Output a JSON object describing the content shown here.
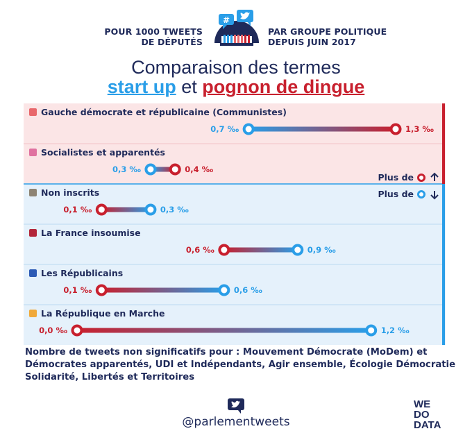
{
  "header": {
    "left_line1": "POUR 1000 TWEETS",
    "left_line2": "DE DÉPUTÉS",
    "right_line1": "PAR GROUPE POLITIQUE",
    "right_line2": "DEPUIS JUIN 2017",
    "title_line1": "Comparaison des termes",
    "term_blue": "start up",
    "title_join": "et",
    "term_red": "pognon de dingue"
  },
  "colors": {
    "blue": "#2a9ee8",
    "red": "#c8202e",
    "navy": "#1f2a5a",
    "bg_red": "#fbe5e6",
    "bg_blue": "#e5f1fb"
  },
  "legend": {
    "more_red": "Plus de",
    "more_blue": "Plus de"
  },
  "chart_data": {
    "type": "dumbbell",
    "unit": "‰",
    "series": [
      {
        "name": "start up",
        "color": "#2a9ee8"
      },
      {
        "name": "pognon de dingue",
        "color": "#c8202e"
      }
    ],
    "rows": [
      {
        "group": "Gauche démocrate et républicaine (Communistes)",
        "swatch": "#e8676b",
        "start_up": 0.7,
        "pognon": 1.3,
        "start_up_label": "0,7 ‰",
        "pognon_label": "1,3 ‰",
        "more": "pognon"
      },
      {
        "group": "Socialistes et apparentés",
        "swatch": "#e072a0",
        "start_up": 0.3,
        "pognon": 0.4,
        "start_up_label": "0,3 ‰",
        "pognon_label": "0,4 ‰",
        "more": "pognon"
      },
      {
        "group": "Non inscrits",
        "swatch": "#8e8474",
        "start_up": 0.3,
        "pognon": 0.1,
        "start_up_label": "0,3 ‰",
        "pognon_label": "0,1 ‰",
        "more": "start_up"
      },
      {
        "group": "La France insoumise",
        "swatch": "#b3263a",
        "start_up": 0.9,
        "pognon": 0.6,
        "start_up_label": "0,9 ‰",
        "pognon_label": "0,6 ‰",
        "more": "start_up"
      },
      {
        "group": "Les Républicains",
        "swatch": "#2d5bb5",
        "start_up": 0.6,
        "pognon": 0.1,
        "start_up_label": "0,6 ‰",
        "pognon_label": "0,1 ‰",
        "more": "start_up"
      },
      {
        "group": "La République en Marche",
        "swatch": "#f0a93a",
        "start_up": 1.2,
        "pognon": 0.0,
        "start_up_label": "1,2 ‰",
        "pognon_label": "0,0 ‰",
        "more": "start_up"
      }
    ],
    "xlim": [
      0,
      1.3
    ]
  },
  "footnote": "Nombre de tweets non significatifs pour : Mouvement Démocrate (MoDem) et Démocrates apparentés, UDI et Indépendants, Agir ensemble, Écologie Démocratie Solidarité, Libertés et Territoires",
  "footer": {
    "handle": "@parlementweets",
    "brand_line1": "WE",
    "brand_line2": "DO",
    "brand_line3": "DATA"
  }
}
